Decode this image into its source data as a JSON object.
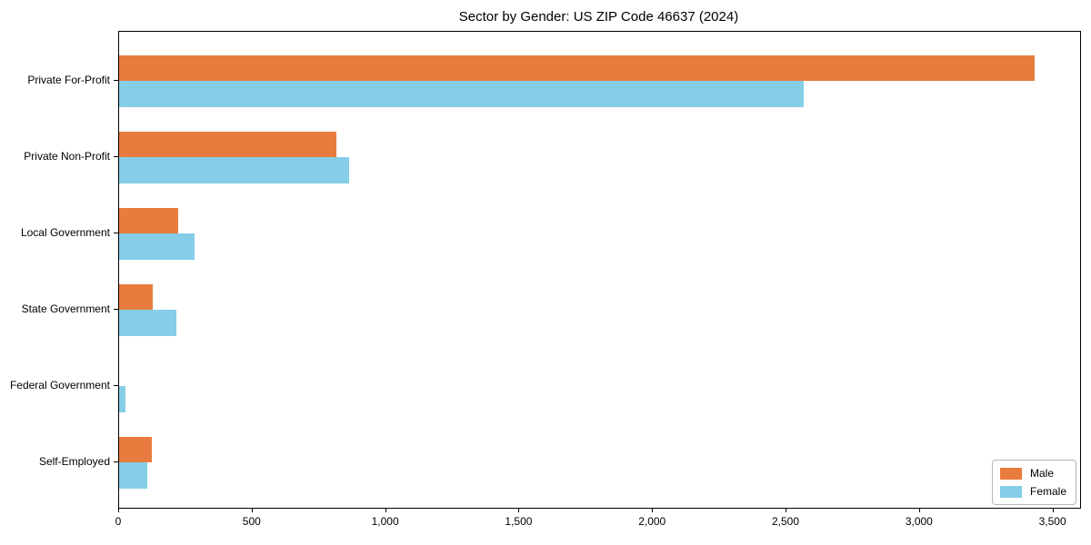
{
  "chart_data": {
    "type": "bar",
    "orientation": "horizontal",
    "title": "Sector by Gender: US ZIP Code 46637 (2024)",
    "categories": [
      "Private For-Profit",
      "Private Non-Profit",
      "Local Government",
      "State Government",
      "Federal Government",
      "Self-Employed"
    ],
    "series": [
      {
        "name": "Male",
        "color": "#e87c3e",
        "values": [
          3430,
          815,
          222,
          125,
          0,
          122
        ]
      },
      {
        "name": "Female",
        "color": "#86cde8",
        "values": [
          2565,
          860,
          284,
          216,
          23,
          106
        ]
      }
    ],
    "xlabel": "",
    "ylabel": "",
    "xlim": [
      0,
      3600
    ],
    "x_ticks": [
      0,
      500,
      1000,
      1500,
      2000,
      2500,
      3000,
      3500
    ],
    "x_tick_labels": [
      "0",
      "500",
      "1,000",
      "1,500",
      "2,000",
      "2,500",
      "3,000",
      "3,500"
    ],
    "grid": false,
    "legend_position": "lower right",
    "background_color": "#ffffff",
    "spine_color": "#000000"
  }
}
